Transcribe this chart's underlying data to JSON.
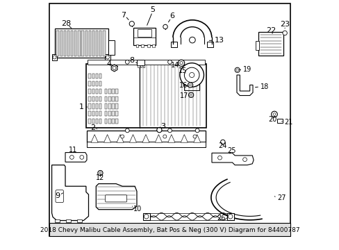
{
  "title": "2018 Chevy Malibu Cable Assembly, Bat Pos & Neg (300 V) Diagram for 84400787",
  "background_color": "#ffffff",
  "border_color": "#000000",
  "text_color": "#000000",
  "fig_width": 4.89,
  "fig_height": 3.6,
  "dpi": 100,
  "subtitle_fontsize": 6.5,
  "num_fontsize": 8,
  "border_lw": 1.0,
  "label_positions": {
    "28": [
      0.085,
      0.895,
      0.115,
      0.845
    ],
    "7": [
      0.315,
      0.935,
      0.345,
      0.905
    ],
    "5": [
      0.435,
      0.955,
      0.435,
      0.915
    ],
    "6": [
      0.51,
      0.935,
      0.488,
      0.91
    ],
    "13": [
      0.68,
      0.84,
      0.64,
      0.82
    ],
    "23": [
      0.96,
      0.9,
      0.955,
      0.87
    ],
    "22": [
      0.91,
      0.87,
      0.91,
      0.845
    ],
    "4": [
      0.265,
      0.74,
      0.285,
      0.725
    ],
    "8": [
      0.37,
      0.755,
      0.388,
      0.74
    ],
    "14": [
      0.53,
      0.74,
      0.55,
      0.72
    ],
    "15": [
      0.555,
      0.71,
      0.57,
      0.7
    ],
    "19": [
      0.79,
      0.72,
      0.778,
      0.715
    ],
    "18": [
      0.88,
      0.66,
      0.862,
      0.65
    ],
    "1": [
      0.148,
      0.575,
      0.18,
      0.572
    ],
    "16": [
      0.57,
      0.65,
      0.587,
      0.648
    ],
    "17": [
      0.56,
      0.615,
      0.58,
      0.612
    ],
    "20": [
      0.915,
      0.535,
      0.918,
      0.525
    ],
    "21": [
      0.955,
      0.515,
      0.94,
      0.52
    ],
    "3": [
      0.46,
      0.48,
      0.448,
      0.48
    ],
    "2": [
      0.192,
      0.49,
      0.218,
      0.483
    ],
    "24": [
      0.712,
      0.43,
      0.714,
      0.418
    ],
    "11": [
      0.115,
      0.38,
      0.148,
      0.368
    ],
    "25": [
      0.745,
      0.38,
      0.74,
      0.365
    ],
    "12": [
      0.222,
      0.29,
      0.225,
      0.302
    ],
    "9": [
      0.052,
      0.215,
      0.075,
      0.23
    ],
    "10": [
      0.355,
      0.165,
      0.34,
      0.175
    ],
    "26": [
      0.69,
      0.128,
      0.672,
      0.14
    ],
    "27": [
      0.93,
      0.21,
      0.91,
      0.22
    ]
  }
}
